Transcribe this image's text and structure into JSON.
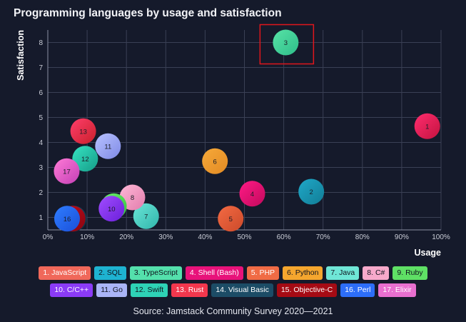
{
  "title": "Programming languages by usage and satisfaction",
  "source": "Source: Jamstack Community Survey 2020—2021",
  "chart_data": {
    "type": "scatter",
    "xlabel": "Usage",
    "ylabel": "Satisfaction",
    "xlim": [
      0,
      100
    ],
    "ylim": [
      0.5,
      8.5
    ],
    "xticks": [
      "0%",
      "10%",
      "20%",
      "30%",
      "40%",
      "50%",
      "60%",
      "70%",
      "80%",
      "90%",
      "100%"
    ],
    "yticks": [
      "1",
      "2",
      "3",
      "4",
      "5",
      "6",
      "7",
      "8"
    ],
    "highlight": 3,
    "points": [
      {
        "id": 1,
        "name": "JavaScript",
        "x": 96.5,
        "y": 4.65,
        "c1": "#ff2d6f",
        "c2": "#c3133f",
        "lc": "#f0685a"
      },
      {
        "id": 2,
        "name": "SQL",
        "x": 67,
        "y": 2.03,
        "c1": "#1fa8c8",
        "c2": "#127d96",
        "lc": "#1eb3d1"
      },
      {
        "id": 3,
        "name": "TypeScript",
        "x": 60.5,
        "y": 8.0,
        "c1": "#58e3a6",
        "c2": "#2ebd8a",
        "lc": "#54e0ac"
      },
      {
        "id": 4,
        "name": "Shell (Bash)",
        "x": 52,
        "y": 1.95,
        "c1": "#ff1a86",
        "c2": "#c20a5c",
        "lc": "#e8127a"
      },
      {
        "id": 5,
        "name": "PHP",
        "x": 46.5,
        "y": 0.95,
        "c1": "#f36a43",
        "c2": "#cc4a2a",
        "lc": "#f06b45"
      },
      {
        "id": 6,
        "name": "Python",
        "x": 42.5,
        "y": 3.25,
        "c1": "#f6a939",
        "c2": "#e38b24",
        "lc": "#f5a62e"
      },
      {
        "id": 7,
        "name": "Java",
        "x": 25,
        "y": 1.05,
        "c1": "#6ae4d6",
        "c2": "#31b7ac",
        "lc": "#6fe6d6"
      },
      {
        "id": 8,
        "name": "C#",
        "x": 21.5,
        "y": 1.8,
        "c1": "#ffb9d8",
        "c2": "#e27cac",
        "lc": "#f7a9cb"
      },
      {
        "id": 9,
        "name": "Ruby",
        "x": 16.8,
        "y": 1.45,
        "c1": "#6cf06b",
        "c2": "#33c23f",
        "lc": "#5fe065"
      },
      {
        "id": 10,
        "name": "C/C++",
        "x": 16.2,
        "y": 1.35,
        "c1": "#a14dff",
        "c2": "#6a1fd9",
        "lc": "#8b3bf6"
      },
      {
        "id": 11,
        "name": "Go",
        "x": 15.3,
        "y": 3.85,
        "c1": "#b8c2ff",
        "c2": "#7f8ae6",
        "lc": "#aab4f7"
      },
      {
        "id": 12,
        "name": "Swift",
        "x": 9.5,
        "y": 3.35,
        "c1": "#36e3c2",
        "c2": "#169c88",
        "lc": "#2ed2b6"
      },
      {
        "id": 13,
        "name": "Rust",
        "x": 9.0,
        "y": 4.45,
        "c1": "#ff3e6b",
        "c2": "#c9202b",
        "lc": "#f2374d"
      },
      {
        "id": 14,
        "name": "Visual Basic",
        "x": 6.6,
        "y": 0.95,
        "c1": "#1a5675",
        "c2": "#0c2e42",
        "lc": "#1c4c66"
      },
      {
        "id": 15,
        "name": "Objective-C",
        "x": 6.3,
        "y": 0.95,
        "c1": "#c80a1a",
        "c2": "#870612",
        "lc": "#a50b14"
      },
      {
        "id": 16,
        "name": "Perl",
        "x": 4.9,
        "y": 0.95,
        "c1": "#2f7dff",
        "c2": "#1a4fd9",
        "lc": "#2d6ef8"
      },
      {
        "id": 17,
        "name": "Elixir",
        "x": 4.8,
        "y": 2.85,
        "c1": "#ff7bd6",
        "c2": "#c43fb6",
        "lc": "#e86fcf"
      }
    ]
  }
}
